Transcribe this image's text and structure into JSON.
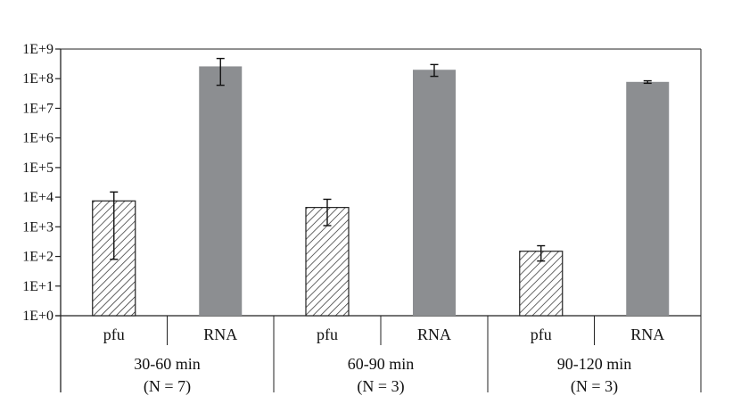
{
  "chart_data": {
    "type": "bar",
    "y_scale": "log10",
    "ylim": [
      1,
      1000000000
    ],
    "y_ticks": [
      {
        "value": 1,
        "label": "1E+0"
      },
      {
        "value": 10,
        "label": "1E+1"
      },
      {
        "value": 100,
        "label": "1E+2"
      },
      {
        "value": 1000,
        "label": "1E+3"
      },
      {
        "value": 10000,
        "label": "1E+4"
      },
      {
        "value": 100000,
        "label": "1E+5"
      },
      {
        "value": 1000000,
        "label": "1E+6"
      },
      {
        "value": 10000000,
        "label": "1E+7"
      },
      {
        "value": 100000000,
        "label": "1E+8"
      },
      {
        "value": 1000000000,
        "label": "1E+9"
      }
    ],
    "grid": false,
    "legend": "none",
    "categories": [
      "pfu",
      "RNA"
    ],
    "groups": [
      {
        "label": "30-60 min",
        "sublabel": "(N = 7)",
        "bars": [
          {
            "category": "pfu",
            "value": 7500,
            "err_low": 80,
            "err_high": 15000
          },
          {
            "category": "RNA",
            "value": 260000000,
            "err_low": 60000000,
            "err_high": 480000000
          }
        ]
      },
      {
        "label": "60-90 min",
        "sublabel": "(N = 3)",
        "bars": [
          {
            "category": "pfu",
            "value": 4500,
            "err_low": 1100,
            "err_high": 8500
          },
          {
            "category": "RNA",
            "value": 200000000,
            "err_low": 120000000,
            "err_high": 300000000
          }
        ]
      },
      {
        "label": "90-120 min",
        "sublabel": "(N = 3)",
        "bars": [
          {
            "category": "pfu",
            "value": 150,
            "err_low": 70,
            "err_high": 230
          },
          {
            "category": "RNA",
            "value": 78000000,
            "err_low": 70000000,
            "err_high": 85000000
          }
        ]
      }
    ],
    "colors": {
      "pfu_fill": "#ffffff",
      "pfu_hatch": "#222222",
      "rna_fill": "#8c8e91",
      "axis": "#222222",
      "error_bar": "#111111"
    }
  }
}
